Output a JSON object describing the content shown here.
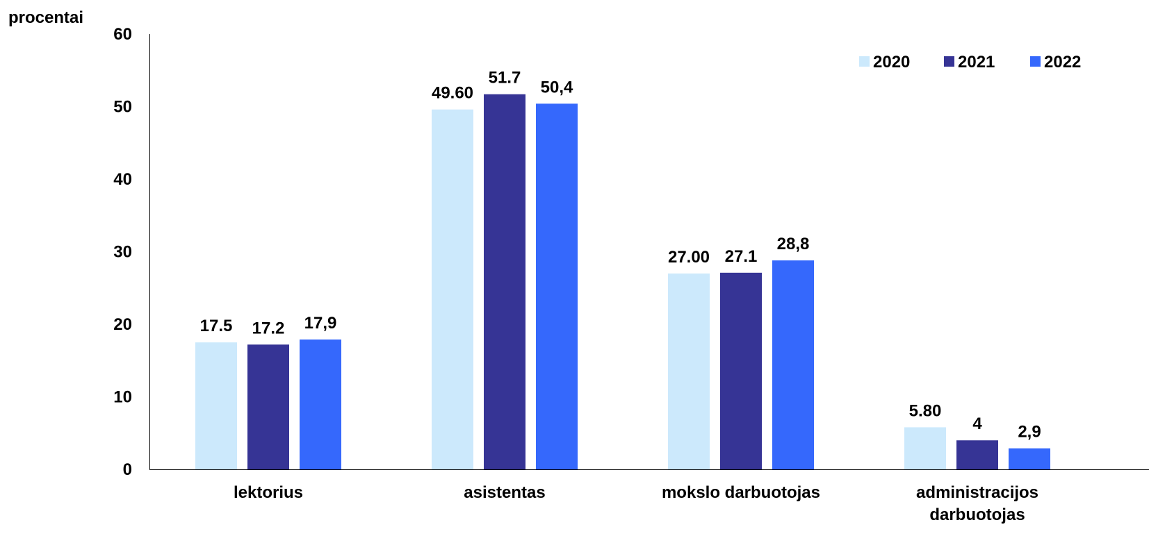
{
  "chart_data": {
    "type": "bar",
    "title": "",
    "xlabel": "",
    "ylabel": "procentai",
    "ylim": [
      0,
      60
    ],
    "yticks": [
      "0",
      "10",
      "20",
      "30",
      "40",
      "50",
      "60"
    ],
    "categories": [
      [
        "lektorius"
      ],
      [
        "asistentas"
      ],
      [
        "mokslo darbuotojas"
      ],
      [
        "administracijos",
        "darbuotojas"
      ]
    ],
    "legend_position": "top-right",
    "grid": false,
    "series": [
      {
        "name": "2020",
        "color": "#cce9fc",
        "values": [
          17.5,
          49.6,
          27.0,
          5.8
        ],
        "labels": [
          "17.5",
          "49.60",
          "27.00",
          "5.80"
        ]
      },
      {
        "name": "2021",
        "color": "#363495",
        "values": [
          17.2,
          51.7,
          27.1,
          4.0
        ],
        "labels": [
          "17.2",
          "51.7",
          "27.1",
          "4"
        ]
      },
      {
        "name": "2022",
        "color": "#3568fc",
        "values": [
          17.9,
          50.4,
          28.8,
          2.9
        ],
        "labels": [
          "17,9",
          "50,4",
          "28,8",
          "2,9"
        ]
      }
    ]
  }
}
